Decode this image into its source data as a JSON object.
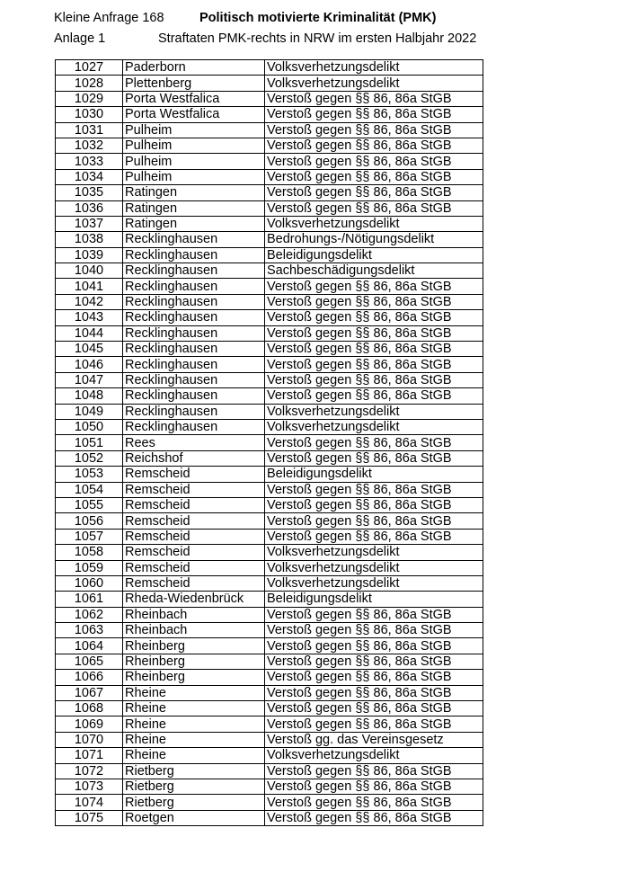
{
  "header": {
    "left_line1": "Kleine Anfrage 168",
    "left_line2": "Anlage 1",
    "title": "Politisch motivierte Kriminalität (PMK)",
    "subtitle": "Straftaten PMK-rechts in NRW im ersten Halbjahr 2022"
  },
  "rows": [
    [
      "1027",
      "Paderborn",
      "Volksverhetzungsdelikt"
    ],
    [
      "1028",
      "Plettenberg",
      "Volksverhetzungsdelikt"
    ],
    [
      "1029",
      "Porta Westfalica",
      "Verstoß gegen §§ 86, 86a StGB"
    ],
    [
      "1030",
      "Porta Westfalica",
      "Verstoß gegen §§ 86, 86a StGB"
    ],
    [
      "1031",
      "Pulheim",
      "Verstoß gegen §§ 86, 86a StGB"
    ],
    [
      "1032",
      "Pulheim",
      "Verstoß gegen §§ 86, 86a StGB"
    ],
    [
      "1033",
      "Pulheim",
      "Verstoß gegen §§ 86, 86a StGB"
    ],
    [
      "1034",
      "Pulheim",
      "Verstoß gegen §§ 86, 86a StGB"
    ],
    [
      "1035",
      "Ratingen",
      "Verstoß gegen §§ 86, 86a StGB"
    ],
    [
      "1036",
      "Ratingen",
      "Verstoß gegen §§ 86, 86a StGB"
    ],
    [
      "1037",
      "Ratingen",
      "Volksverhetzungsdelikt"
    ],
    [
      "1038",
      "Recklinghausen",
      "Bedrohungs-/Nötigungsdelikt"
    ],
    [
      "1039",
      "Recklinghausen",
      "Beleidigungsdelikt"
    ],
    [
      "1040",
      "Recklinghausen",
      "Sachbeschädigungsdelikt"
    ],
    [
      "1041",
      "Recklinghausen",
      "Verstoß gegen §§ 86, 86a StGB"
    ],
    [
      "1042",
      "Recklinghausen",
      "Verstoß gegen §§ 86, 86a StGB"
    ],
    [
      "1043",
      "Recklinghausen",
      "Verstoß gegen §§ 86, 86a StGB"
    ],
    [
      "1044",
      "Recklinghausen",
      "Verstoß gegen §§ 86, 86a StGB"
    ],
    [
      "1045",
      "Recklinghausen",
      "Verstoß gegen §§ 86, 86a StGB"
    ],
    [
      "1046",
      "Recklinghausen",
      "Verstoß gegen §§ 86, 86a StGB"
    ],
    [
      "1047",
      "Recklinghausen",
      "Verstoß gegen §§ 86, 86a StGB"
    ],
    [
      "1048",
      "Recklinghausen",
      "Verstoß gegen §§ 86, 86a StGB"
    ],
    [
      "1049",
      "Recklinghausen",
      "Volksverhetzungsdelikt"
    ],
    [
      "1050",
      "Recklinghausen",
      "Volksverhetzungsdelikt"
    ],
    [
      "1051",
      "Rees",
      "Verstoß gegen §§ 86, 86a StGB"
    ],
    [
      "1052",
      "Reichshof",
      "Verstoß gegen §§ 86, 86a StGB"
    ],
    [
      "1053",
      "Remscheid",
      "Beleidigungsdelikt"
    ],
    [
      "1054",
      "Remscheid",
      "Verstoß gegen §§ 86, 86a StGB"
    ],
    [
      "1055",
      "Remscheid",
      "Verstoß gegen §§ 86, 86a StGB"
    ],
    [
      "1056",
      "Remscheid",
      "Verstoß gegen §§ 86, 86a StGB"
    ],
    [
      "1057",
      "Remscheid",
      "Verstoß gegen §§ 86, 86a StGB"
    ],
    [
      "1058",
      "Remscheid",
      "Volksverhetzungsdelikt"
    ],
    [
      "1059",
      "Remscheid",
      "Volksverhetzungsdelikt"
    ],
    [
      "1060",
      "Remscheid",
      "Volksverhetzungsdelikt"
    ],
    [
      "1061",
      "Rheda-Wiedenbrück",
      "Beleidigungsdelikt"
    ],
    [
      "1062",
      "Rheinbach",
      "Verstoß gegen §§ 86, 86a StGB"
    ],
    [
      "1063",
      "Rheinbach",
      "Verstoß gegen §§ 86, 86a StGB"
    ],
    [
      "1064",
      "Rheinberg",
      "Verstoß gegen §§ 86, 86a StGB"
    ],
    [
      "1065",
      "Rheinberg",
      "Verstoß gegen §§ 86, 86a StGB"
    ],
    [
      "1066",
      "Rheinberg",
      "Verstoß gegen §§ 86, 86a StGB"
    ],
    [
      "1067",
      "Rheine",
      "Verstoß gegen §§ 86, 86a StGB"
    ],
    [
      "1068",
      "Rheine",
      "Verstoß gegen §§ 86, 86a StGB"
    ],
    [
      "1069",
      "Rheine",
      "Verstoß gegen §§ 86, 86a StGB"
    ],
    [
      "1070",
      "Rheine",
      "Verstoß gg. das Vereinsgesetz"
    ],
    [
      "1071",
      "Rheine",
      "Volksverhetzungsdelikt"
    ],
    [
      "1072",
      "Rietberg",
      "Verstoß gegen §§ 86, 86a StGB"
    ],
    [
      "1073",
      "Rietberg",
      "Verstoß gegen §§ 86, 86a StGB"
    ],
    [
      "1074",
      "Rietberg",
      "Verstoß gegen §§ 86, 86a StGB"
    ],
    [
      "1075",
      "Roetgen",
      "Verstoß gegen §§ 86, 86a StGB"
    ]
  ]
}
